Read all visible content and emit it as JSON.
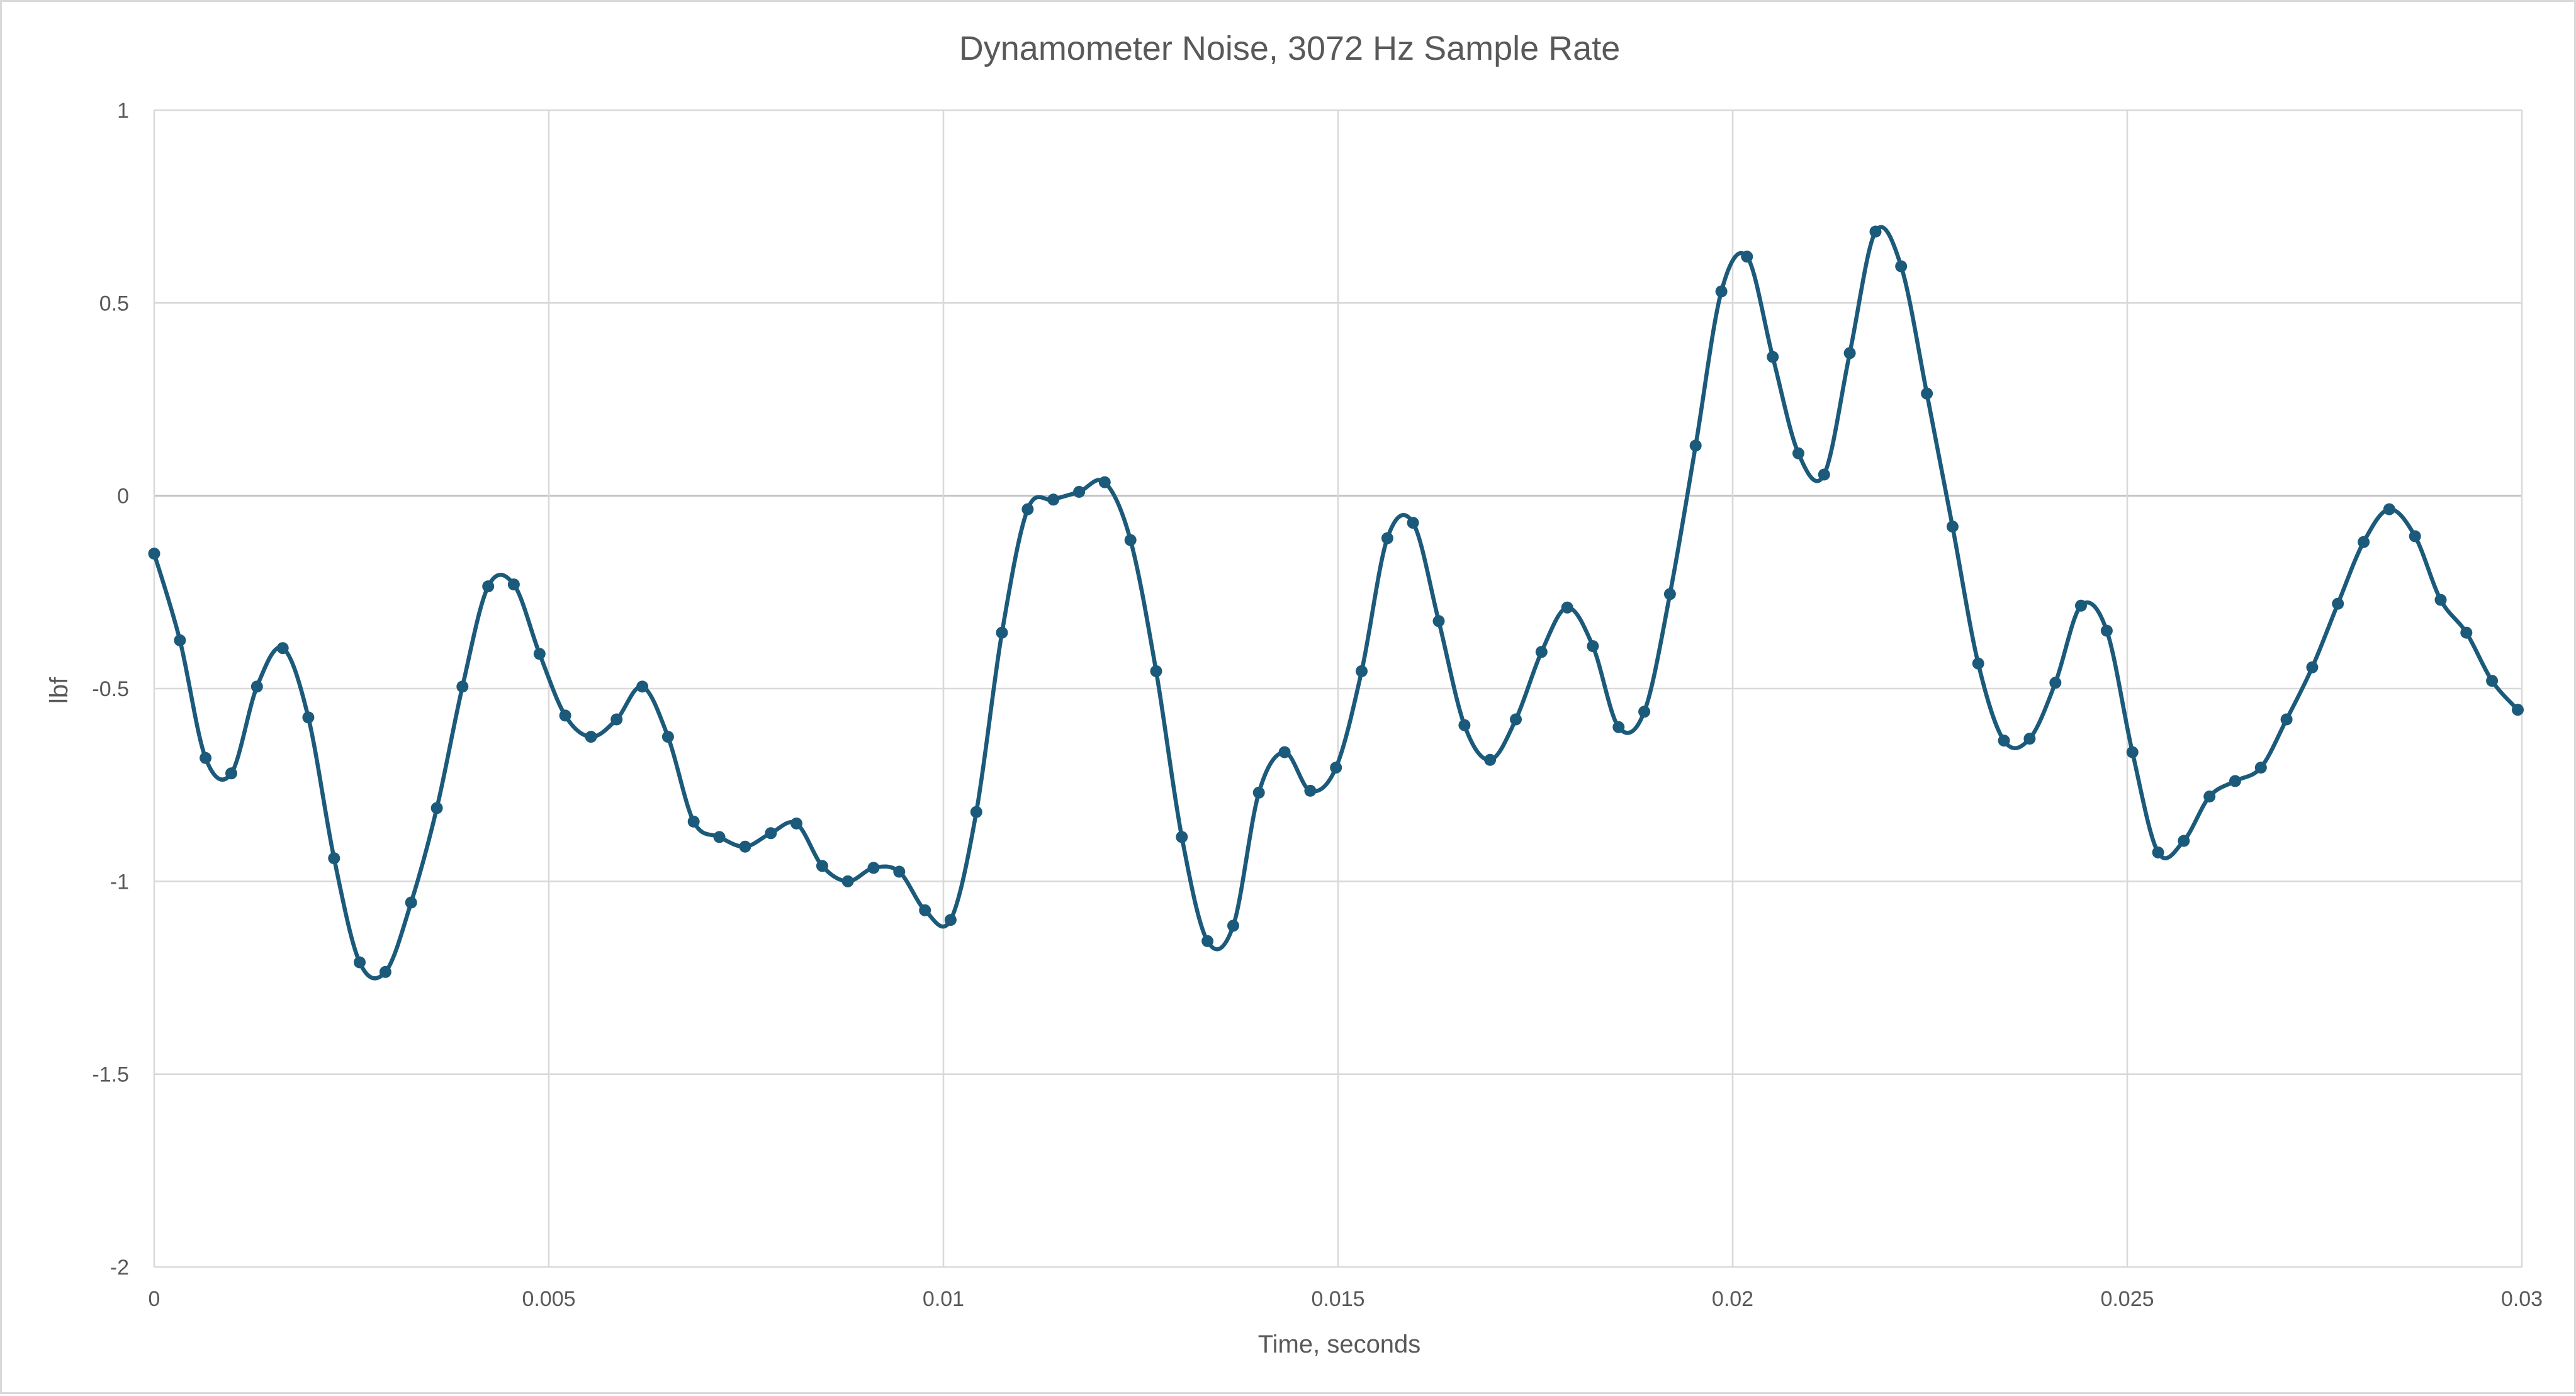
{
  "chart_data": {
    "type": "line",
    "title": "Dynamometer Noise, 3072 Hz Sample Rate",
    "xlabel": "Time, seconds",
    "ylabel": "lbf",
    "xlim": [
      0,
      0.03
    ],
    "ylim": [
      -2,
      1
    ],
    "x_ticks": [
      0,
      0.005,
      0.01,
      0.015,
      0.02,
      0.025,
      0.03
    ],
    "x_tick_labels": [
      "0",
      "0.005",
      "0.01",
      "0.015",
      "0.02",
      "0.025",
      "0.03"
    ],
    "y_ticks": [
      1,
      0.5,
      0,
      -0.5,
      -1,
      -1.5,
      -2
    ],
    "y_tick_labels": [
      "1",
      "0.5",
      "0",
      "-0.5",
      "-1",
      "-1.5",
      "-2"
    ],
    "grid": true,
    "legend": "none",
    "colors": {
      "series": "#1b5a7a",
      "grid": "#d9d9d9",
      "text": "#595959"
    },
    "series": [
      {
        "line_style": "smoothed",
        "marker": "circle",
        "x": [
          0,
          0.000326,
          0.000651,
          0.000977,
          0.001302,
          0.001628,
          0.001953,
          0.002279,
          0.002604,
          0.00293,
          0.003255,
          0.003581,
          0.003906,
          0.004232,
          0.004557,
          0.004883,
          0.005208,
          0.005534,
          0.005859,
          0.006185,
          0.00651,
          0.006836,
          0.007161,
          0.007487,
          0.007813,
          0.008138,
          0.008464,
          0.008789,
          0.009115,
          0.00944,
          0.009766,
          0.010091,
          0.010417,
          0.010742,
          0.011068,
          0.011393,
          0.011719,
          0.012044,
          0.01237,
          0.012695,
          0.013021,
          0.013346,
          0.013672,
          0.013997,
          0.014323,
          0.014648,
          0.014974,
          0.015299,
          0.015625,
          0.01595,
          0.016276,
          0.016602,
          0.016927,
          0.017253,
          0.017578,
          0.017904,
          0.018229,
          0.018555,
          0.01888,
          0.019206,
          0.019531,
          0.019857,
          0.020182,
          0.020508,
          0.020833,
          0.021159,
          0.021484,
          0.02181,
          0.022135,
          0.022461,
          0.022786,
          0.023112,
          0.023438,
          0.023763,
          0.024089,
          0.024414,
          0.02474,
          0.025065,
          0.025391,
          0.025716,
          0.026042,
          0.026367,
          0.026693,
          0.027018,
          0.027344,
          0.027669,
          0.027995,
          0.02832,
          0.028646,
          0.028971,
          0.029297,
          0.029622,
          0.029948
        ],
        "y": [
          -0.15,
          -0.375,
          -0.68,
          -0.72,
          -0.495,
          -0.395,
          -0.575,
          -0.94,
          -1.21,
          -1.235,
          -1.055,
          -0.81,
          -0.495,
          -0.235,
          -0.23,
          -0.41,
          -0.57,
          -0.625,
          -0.58,
          -0.495,
          -0.625,
          -0.845,
          -0.885,
          -0.91,
          -0.875,
          -0.85,
          -0.96,
          -1.0,
          -0.965,
          -0.975,
          -1.075,
          -1.1,
          -0.82,
          -0.355,
          -0.035,
          -0.01,
          0.01,
          0.035,
          -0.115,
          -0.455,
          -0.885,
          -1.155,
          -1.115,
          -0.77,
          -0.665,
          -0.765,
          -0.705,
          -0.455,
          -0.11,
          -0.07,
          -0.325,
          -0.595,
          -0.685,
          -0.58,
          -0.405,
          -0.29,
          -0.39,
          -0.6,
          -0.56,
          -0.255,
          0.13,
          0.53,
          0.62,
          0.36,
          0.11,
          0.055,
          0.37,
          0.685,
          0.595,
          0.265,
          -0.08,
          -0.435,
          -0.635,
          -0.63,
          -0.485,
          -0.285,
          -0.35,
          -0.665,
          -0.925,
          -0.895,
          -0.78,
          -0.74,
          -0.705,
          -0.58,
          -0.445,
          -0.28,
          -0.12,
          -0.035,
          -0.105,
          -0.27,
          -0.355,
          -0.48,
          -0.555
        ]
      }
    ]
  }
}
